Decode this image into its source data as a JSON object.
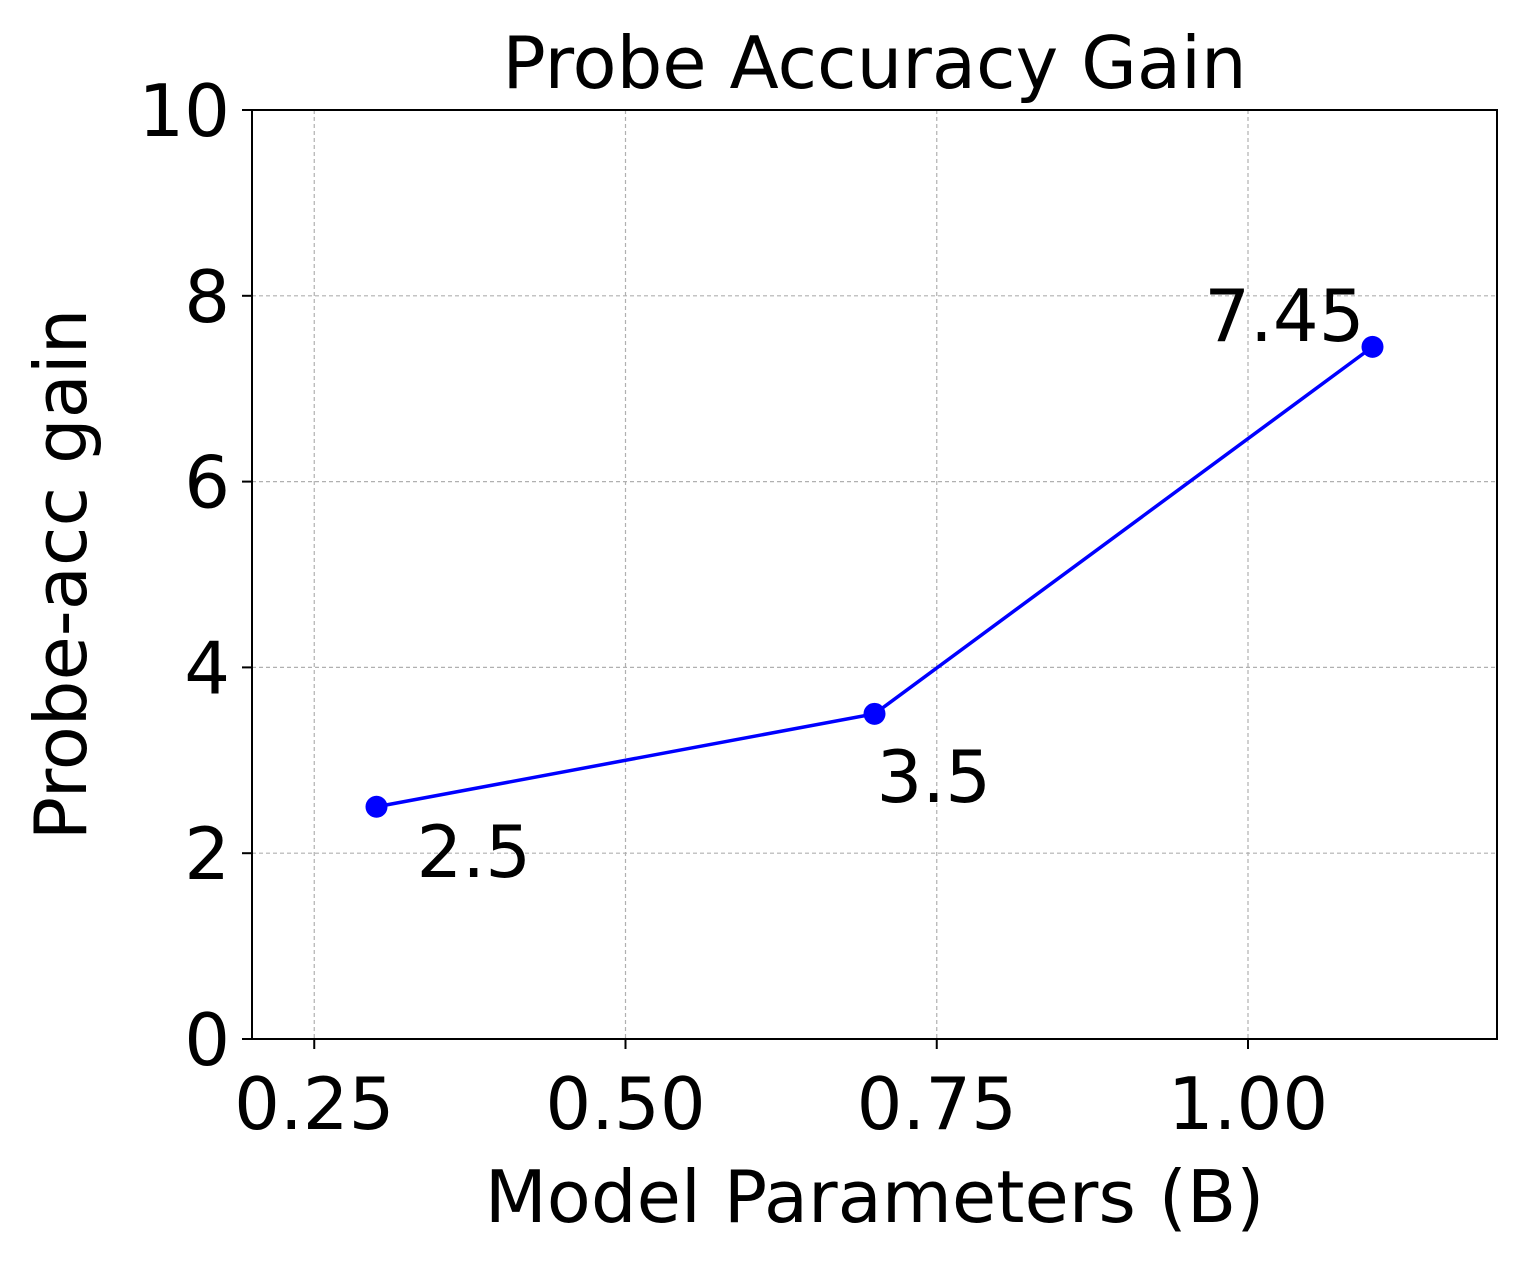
{
  "chart_data": {
    "type": "line",
    "title": "Probe Accuracy Gain",
    "xlabel": "Model Parameters (B)",
    "ylabel": "Probe-acc gain",
    "xlim": [
      0.2,
      1.2
    ],
    "ylim": [
      0,
      10
    ],
    "x_ticks": [
      "0.25",
      "0.50",
      "0.75",
      "1.00"
    ],
    "x_tick_values": [
      0.25,
      0.5,
      0.75,
      1.0
    ],
    "y_ticks": [
      "0",
      "2",
      "4",
      "6",
      "8",
      "10"
    ],
    "y_tick_values": [
      0,
      2,
      4,
      6,
      8,
      10
    ],
    "grid": true,
    "series": [
      {
        "x": [
          0.3,
          0.7,
          1.1
        ],
        "values": [
          2.5,
          3.5,
          7.45
        ],
        "labels": [
          "2.5",
          "3.5",
          "7.45"
        ],
        "color": "#0000ff",
        "marker": "circle"
      }
    ]
  }
}
